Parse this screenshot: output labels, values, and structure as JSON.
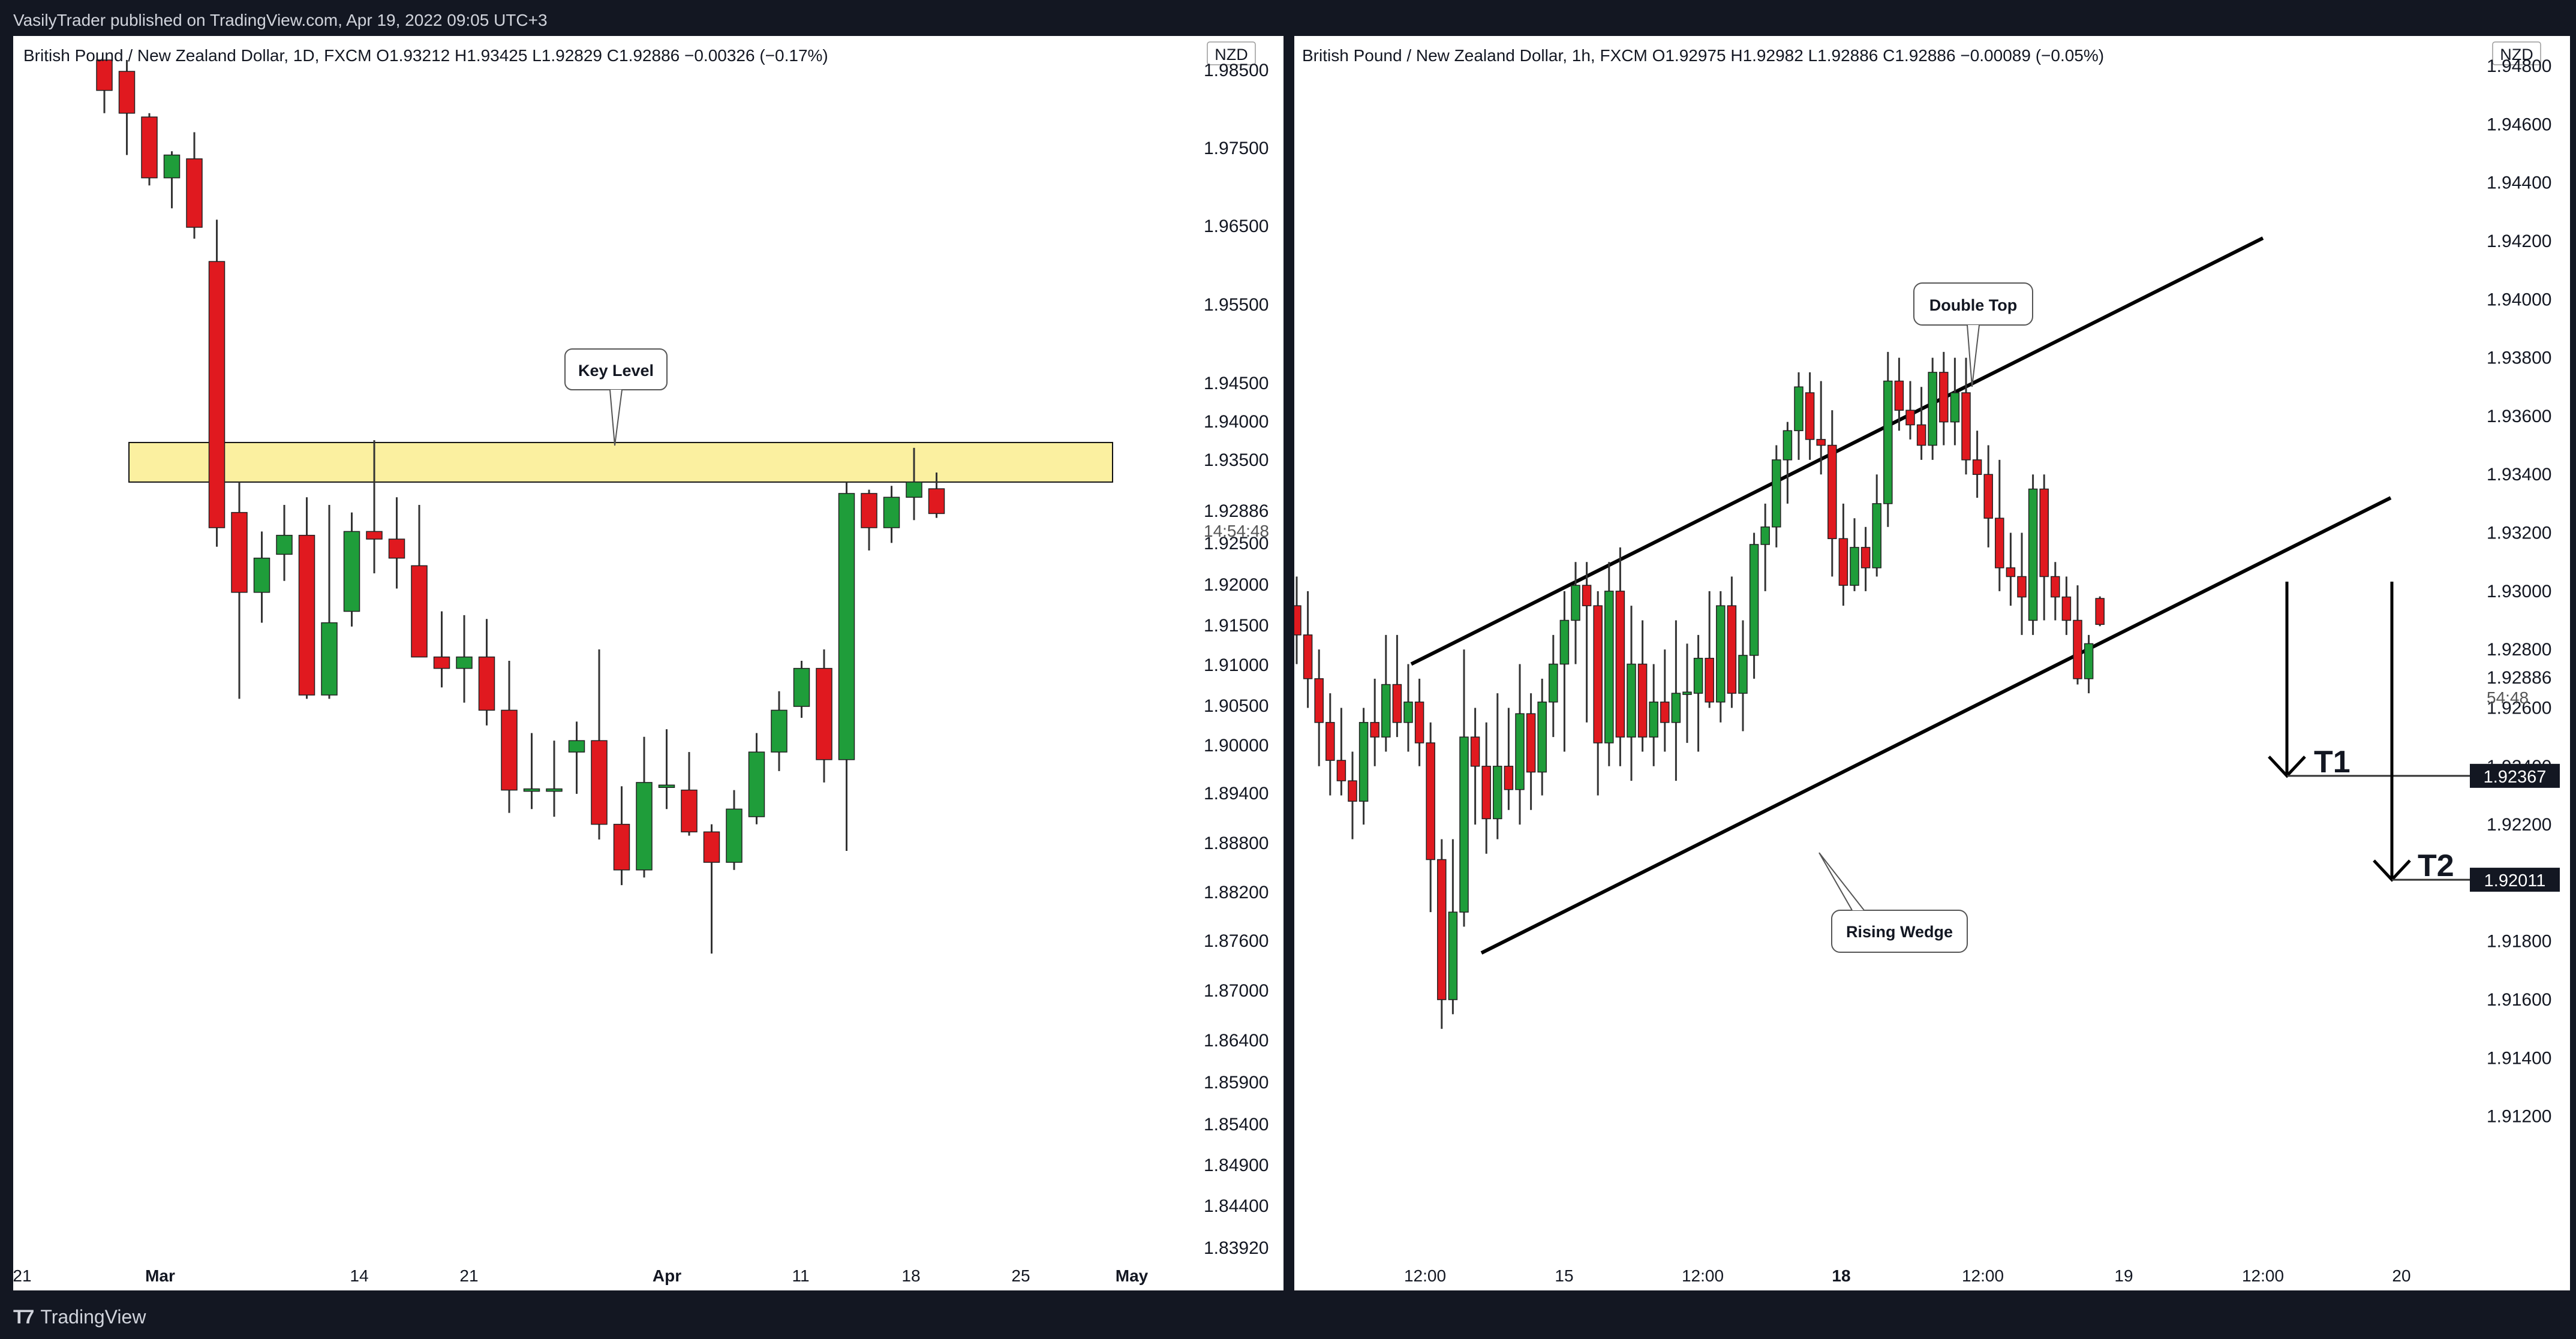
{
  "header": {
    "published": "VasilyTrader published on TradingView.com, Apr 19, 2022 09:05 UTC+3"
  },
  "footer": {
    "brand": "TradingView",
    "logo": "tradingview-logo-icon"
  },
  "colors": {
    "up": "#1f9d3a",
    "down": "#e0191f",
    "wick": "#333333",
    "zone_fill": "#fbf0a0",
    "zone_stroke": "#111111",
    "lines": "#000000"
  },
  "chart_data": [
    {
      "type": "candlestick",
      "header": "British Pound / New Zealand Dollar, 1D, FXCM  O1.93212  H1.93425  L1.92829  C1.92886  −0.00326 (−0.17%)",
      "currency": "NZD",
      "price_label": "1.92886",
      "countdown": "14:54:48",
      "ylim": [
        1.8383,
        1.9885
      ],
      "y_ticks": [
        "1.98500",
        "1.97500",
        "1.96500",
        "1.95500",
        "1.94500",
        "1.94000",
        "1.93500",
        "1.92886",
        "1.92500",
        "1.92000",
        "1.91500",
        "1.91000",
        "1.90500",
        "1.90000",
        "1.89400",
        "1.88800",
        "1.88200",
        "1.87600",
        "1.87000",
        "1.86400",
        "1.85900",
        "1.85400",
        "1.84900",
        "1.84400",
        "1.83920"
      ],
      "x_ticks": [
        "21",
        "Mar",
        "14",
        "21",
        "Apr",
        "11",
        "18",
        "25",
        "May"
      ],
      "candles": [
        {
          "o": 1.9885,
          "h": 1.9885,
          "l": 1.9815,
          "c": 1.9845
        },
        {
          "o": 1.987,
          "h": 1.9885,
          "l": 1.976,
          "c": 1.9815
        },
        {
          "o": 1.981,
          "h": 1.9815,
          "l": 1.972,
          "c": 1.973
        },
        {
          "o": 1.973,
          "h": 1.9765,
          "l": 1.969,
          "c": 1.976
        },
        {
          "o": 1.9755,
          "h": 1.979,
          "l": 1.965,
          "c": 1.9665
        },
        {
          "o": 1.962,
          "h": 1.9675,
          "l": 1.9245,
          "c": 1.927
        },
        {
          "o": 1.929,
          "h": 1.933,
          "l": 1.9045,
          "c": 1.9185
        },
        {
          "o": 1.9185,
          "h": 1.9265,
          "l": 1.9145,
          "c": 1.923
        },
        {
          "o": 1.9235,
          "h": 1.93,
          "l": 1.92,
          "c": 1.926
        },
        {
          "o": 1.926,
          "h": 1.931,
          "l": 1.9045,
          "c": 1.905
        },
        {
          "o": 1.905,
          "h": 1.93,
          "l": 1.9045,
          "c": 1.9145
        },
        {
          "o": 1.916,
          "h": 1.929,
          "l": 1.914,
          "c": 1.9265
        },
        {
          "o": 1.9265,
          "h": 1.9385,
          "l": 1.921,
          "c": 1.9255
        },
        {
          "o": 1.9255,
          "h": 1.931,
          "l": 1.919,
          "c": 1.923
        },
        {
          "o": 1.922,
          "h": 1.93,
          "l": 1.9105,
          "c": 1.91
        },
        {
          "o": 1.91,
          "h": 1.916,
          "l": 1.906,
          "c": 1.9085
        },
        {
          "o": 1.9085,
          "h": 1.9155,
          "l": 1.904,
          "c": 1.91
        },
        {
          "o": 1.91,
          "h": 1.915,
          "l": 1.901,
          "c": 1.903
        },
        {
          "o": 1.903,
          "h": 1.9095,
          "l": 1.8895,
          "c": 1.8925
        },
        {
          "o": 1.8925,
          "h": 1.9,
          "l": 1.89,
          "c": 1.8925
        },
        {
          "o": 1.8925,
          "h": 1.899,
          "l": 1.889,
          "c": 1.8925
        },
        {
          "o": 1.8975,
          "h": 1.9015,
          "l": 1.892,
          "c": 1.899
        },
        {
          "o": 1.899,
          "h": 1.911,
          "l": 1.886,
          "c": 1.888
        },
        {
          "o": 1.888,
          "h": 1.893,
          "l": 1.88,
          "c": 1.882
        },
        {
          "o": 1.882,
          "h": 1.8995,
          "l": 1.881,
          "c": 1.8935
        },
        {
          "o": 1.893,
          "h": 1.9005,
          "l": 1.89,
          "c": 1.893
        },
        {
          "o": 1.8925,
          "h": 1.8975,
          "l": 1.8865,
          "c": 1.887
        },
        {
          "o": 1.887,
          "h": 1.888,
          "l": 1.871,
          "c": 1.883
        },
        {
          "o": 1.883,
          "h": 1.8925,
          "l": 1.882,
          "c": 1.89
        },
        {
          "o": 1.889,
          "h": 1.9,
          "l": 1.888,
          "c": 1.8975
        },
        {
          "o": 1.8975,
          "h": 1.9055,
          "l": 1.895,
          "c": 1.903
        },
        {
          "o": 1.9035,
          "h": 1.9095,
          "l": 1.902,
          "c": 1.9085
        },
        {
          "o": 1.9085,
          "h": 1.911,
          "l": 1.8935,
          "c": 1.8965
        },
        {
          "o": 1.8965,
          "h": 1.933,
          "l": 1.8845,
          "c": 1.9315
        },
        {
          "o": 1.9315,
          "h": 1.932,
          "l": 1.924,
          "c": 1.927
        },
        {
          "o": 1.927,
          "h": 1.9325,
          "l": 1.925,
          "c": 1.931
        },
        {
          "o": 1.931,
          "h": 1.9375,
          "l": 1.928,
          "c": 1.933
        },
        {
          "o": 1.93212,
          "h": 1.93425,
          "l": 1.92829,
          "c": 1.92886
        }
      ],
      "annotations": [
        {
          "type": "zone",
          "y0": 1.933,
          "y1": 1.9382
        },
        {
          "type": "callout",
          "text": "Key Level"
        }
      ]
    },
    {
      "type": "candlestick",
      "header": "British Pound / New Zealand Dollar, 1h, FXCM  O1.92975  H1.92982  L1.92886  C1.92886  −0.00089 (−0.05%)",
      "currency": "NZD",
      "price_label": "1.92886",
      "countdown": "54:48",
      "ylim": [
        1.9085,
        1.948
      ],
      "y_ticks": [
        "1.94800",
        "1.94600",
        "1.94400",
        "1.94200",
        "1.94000",
        "1.93800",
        "1.93600",
        "1.93400",
        "1.93200",
        "1.93000",
        "1.92886",
        "1.92800",
        "1.92600",
        "1.92400",
        "1.92200",
        "1.92000",
        "1.91800",
        "1.91600",
        "1.91400",
        "1.91200"
      ],
      "x_ticks": [
        "12:00",
        "15",
        "12:00",
        "18",
        "12:00",
        "19",
        "12:00",
        "20"
      ],
      "candles": [
        {
          "o": 1.9295,
          "h": 1.9305,
          "l": 1.9275,
          "c": 1.9285
        },
        {
          "o": 1.9285,
          "h": 1.93,
          "l": 1.926,
          "c": 1.927
        },
        {
          "o": 1.927,
          "h": 1.928,
          "l": 1.924,
          "c": 1.9255
        },
        {
          "o": 1.9255,
          "h": 1.9265,
          "l": 1.923,
          "c": 1.9242
        },
        {
          "o": 1.9242,
          "h": 1.926,
          "l": 1.923,
          "c": 1.9235
        },
        {
          "o": 1.9235,
          "h": 1.9245,
          "l": 1.9215,
          "c": 1.9228
        },
        {
          "o": 1.9228,
          "h": 1.926,
          "l": 1.922,
          "c": 1.9255
        },
        {
          "o": 1.9255,
          "h": 1.927,
          "l": 1.924,
          "c": 1.925
        },
        {
          "o": 1.925,
          "h": 1.9285,
          "l": 1.9245,
          "c": 1.9268
        },
        {
          "o": 1.9268,
          "h": 1.9285,
          "l": 1.925,
          "c": 1.9255
        },
        {
          "o": 1.9255,
          "h": 1.9275,
          "l": 1.9245,
          "c": 1.9262
        },
        {
          "o": 1.9262,
          "h": 1.927,
          "l": 1.924,
          "c": 1.9248
        },
        {
          "o": 1.9248,
          "h": 1.9255,
          "l": 1.919,
          "c": 1.9208
        },
        {
          "o": 1.9208,
          "h": 1.9215,
          "l": 1.915,
          "c": 1.916
        },
        {
          "o": 1.916,
          "h": 1.9215,
          "l": 1.9155,
          "c": 1.919
        },
        {
          "o": 1.919,
          "h": 1.928,
          "l": 1.9185,
          "c": 1.925
        },
        {
          "o": 1.925,
          "h": 1.926,
          "l": 1.922,
          "c": 1.924
        },
        {
          "o": 1.924,
          "h": 1.9255,
          "l": 1.921,
          "c": 1.9222
        },
        {
          "o": 1.9222,
          "h": 1.9265,
          "l": 1.9215,
          "c": 1.924
        },
        {
          "o": 1.924,
          "h": 1.926,
          "l": 1.9225,
          "c": 1.9232
        },
        {
          "o": 1.9232,
          "h": 1.9275,
          "l": 1.922,
          "c": 1.9258
        },
        {
          "o": 1.9258,
          "h": 1.9265,
          "l": 1.9225,
          "c": 1.9238
        },
        {
          "o": 1.9238,
          "h": 1.927,
          "l": 1.923,
          "c": 1.9262
        },
        {
          "o": 1.9262,
          "h": 1.9285,
          "l": 1.925,
          "c": 1.9275
        },
        {
          "o": 1.9275,
          "h": 1.93,
          "l": 1.9245,
          "c": 1.929
        },
        {
          "o": 1.929,
          "h": 1.931,
          "l": 1.9275,
          "c": 1.9302
        },
        {
          "o": 1.9302,
          "h": 1.931,
          "l": 1.9255,
          "c": 1.9295
        },
        {
          "o": 1.9295,
          "h": 1.93,
          "l": 1.923,
          "c": 1.9248
        },
        {
          "o": 1.9248,
          "h": 1.931,
          "l": 1.924,
          "c": 1.93
        },
        {
          "o": 1.93,
          "h": 1.9315,
          "l": 1.924,
          "c": 1.925
        },
        {
          "o": 1.925,
          "h": 1.9295,
          "l": 1.9235,
          "c": 1.9275
        },
        {
          "o": 1.9275,
          "h": 1.929,
          "l": 1.9245,
          "c": 1.925
        },
        {
          "o": 1.925,
          "h": 1.9275,
          "l": 1.924,
          "c": 1.9262
        },
        {
          "o": 1.9262,
          "h": 1.928,
          "l": 1.9245,
          "c": 1.9255
        },
        {
          "o": 1.9255,
          "h": 1.929,
          "l": 1.9235,
          "c": 1.9265
        },
        {
          "o": 1.9265,
          "h": 1.9282,
          "l": 1.9248,
          "c": 1.9265
        },
        {
          "o": 1.9265,
          "h": 1.9285,
          "l": 1.9245,
          "c": 1.9277
        },
        {
          "o": 1.9277,
          "h": 1.93,
          "l": 1.926,
          "c": 1.9262
        },
        {
          "o": 1.9262,
          "h": 1.93,
          "l": 1.9255,
          "c": 1.9295
        },
        {
          "o": 1.9295,
          "h": 1.9305,
          "l": 1.926,
          "c": 1.9265
        },
        {
          "o": 1.9265,
          "h": 1.929,
          "l": 1.9252,
          "c": 1.9278
        },
        {
          "o": 1.9278,
          "h": 1.932,
          "l": 1.927,
          "c": 1.9316
        },
        {
          "o": 1.9316,
          "h": 1.933,
          "l": 1.93,
          "c": 1.9322
        },
        {
          "o": 1.9322,
          "h": 1.935,
          "l": 1.9315,
          "c": 1.9345
        },
        {
          "o": 1.9345,
          "h": 1.9358,
          "l": 1.933,
          "c": 1.9355
        },
        {
          "o": 1.9355,
          "h": 1.9375,
          "l": 1.9345,
          "c": 1.937
        },
        {
          "o": 1.9368,
          "h": 1.9375,
          "l": 1.9345,
          "c": 1.9352
        },
        {
          "o": 1.9352,
          "h": 1.9372,
          "l": 1.934,
          "c": 1.935
        },
        {
          "o": 1.935,
          "h": 1.9362,
          "l": 1.9305,
          "c": 1.9318
        },
        {
          "o": 1.9318,
          "h": 1.933,
          "l": 1.9295,
          "c": 1.9302
        },
        {
          "o": 1.9302,
          "h": 1.9325,
          "l": 1.93,
          "c": 1.9315
        },
        {
          "o": 1.9315,
          "h": 1.9322,
          "l": 1.93,
          "c": 1.9308
        },
        {
          "o": 1.9308,
          "h": 1.934,
          "l": 1.9305,
          "c": 1.933
        },
        {
          "o": 1.933,
          "h": 1.9382,
          "l": 1.9322,
          "c": 1.9372
        },
        {
          "o": 1.9372,
          "h": 1.938,
          "l": 1.9355,
          "c": 1.9362
        },
        {
          "o": 1.9362,
          "h": 1.9372,
          "l": 1.9352,
          "c": 1.9357
        },
        {
          "o": 1.9357,
          "h": 1.937,
          "l": 1.9345,
          "c": 1.935
        },
        {
          "o": 1.935,
          "h": 1.938,
          "l": 1.9345,
          "c": 1.9375
        },
        {
          "o": 1.9375,
          "h": 1.9382,
          "l": 1.935,
          "c": 1.9358
        },
        {
          "o": 1.9358,
          "h": 1.938,
          "l": 1.935,
          "c": 1.9368
        },
        {
          "o": 1.9368,
          "h": 1.938,
          "l": 1.934,
          "c": 1.9345
        },
        {
          "o": 1.9345,
          "h": 1.9355,
          "l": 1.9332,
          "c": 1.934
        },
        {
          "o": 1.934,
          "h": 1.935,
          "l": 1.9315,
          "c": 1.9325
        },
        {
          "o": 1.9325,
          "h": 1.9345,
          "l": 1.93,
          "c": 1.9308
        },
        {
          "o": 1.9308,
          "h": 1.932,
          "l": 1.9295,
          "c": 1.9305
        },
        {
          "o": 1.9305,
          "h": 1.932,
          "l": 1.9285,
          "c": 1.9298
        },
        {
          "o": 1.929,
          "h": 1.934,
          "l": 1.9285,
          "c": 1.9335
        },
        {
          "o": 1.9335,
          "h": 1.934,
          "l": 1.929,
          "c": 1.9305
        },
        {
          "o": 1.9305,
          "h": 1.931,
          "l": 1.929,
          "c": 1.9298
        },
        {
          "o": 1.9298,
          "h": 1.9305,
          "l": 1.9285,
          "c": 1.929
        },
        {
          "o": 1.929,
          "h": 1.9302,
          "l": 1.9268,
          "c": 1.927
        },
        {
          "o": 1.927,
          "h": 1.9285,
          "l": 1.9265,
          "c": 1.9282
        },
        {
          "o": 1.92975,
          "h": 1.92982,
          "l": 1.9288,
          "c": 1.92886
        }
      ],
      "annotations": [
        {
          "type": "callout",
          "text": "Double Top"
        },
        {
          "type": "callout",
          "text": "Rising Wedge"
        },
        {
          "type": "target",
          "label": "T1",
          "price": "1.92367",
          "value": 1.92367
        },
        {
          "type": "target",
          "label": "T2",
          "price": "1.92011",
          "value": 1.92011
        },
        {
          "type": "trendline",
          "name": "wedge-upper",
          "points": [
            [
              1.9275
            ],
            [
              1.9421
            ]
          ]
        },
        {
          "type": "trendline",
          "name": "wedge-lower",
          "points": [
            [
              1.9176
            ],
            [
              1.9332
            ]
          ]
        }
      ]
    }
  ]
}
